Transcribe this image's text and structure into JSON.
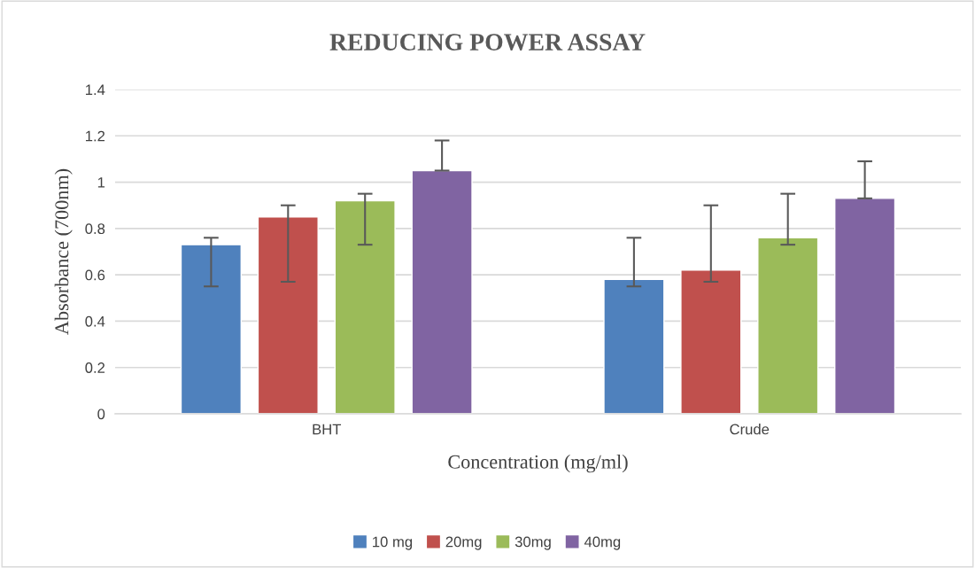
{
  "chart_data": {
    "type": "bar",
    "title": "REDUCING POWER ASSAY",
    "xlabel": "Concentration (mg/ml)",
    "ylabel": "Absorbance (700nm)",
    "categories": [
      "BHT",
      "Crude"
    ],
    "series": [
      {
        "name": "10 mg",
        "color": "#4f81bd",
        "values": [
          0.73,
          0.58
        ],
        "errors": [
          [
            0.55,
            0.76
          ],
          [
            0.55,
            0.76
          ]
        ]
      },
      {
        "name": "20mg",
        "color": "#c0504d",
        "values": [
          0.85,
          0.62
        ],
        "errors": [
          [
            0.57,
            0.9
          ],
          [
            0.57,
            0.9
          ]
        ]
      },
      {
        "name": "30mg",
        "color": "#9bbb59",
        "values": [
          0.92,
          0.76
        ],
        "errors": [
          [
            0.73,
            0.95
          ],
          [
            0.73,
            0.95
          ]
        ]
      },
      {
        "name": "40mg",
        "color": "#8064a2",
        "values": [
          1.05,
          0.93
        ],
        "errors": [
          [
            1.05,
            1.18
          ],
          [
            0.93,
            1.09
          ]
        ]
      }
    ],
    "ylim": [
      0,
      1.4
    ],
    "yticks": [
      0,
      0.2,
      0.4,
      0.6,
      0.8,
      1,
      1.2,
      1.4
    ],
    "grid": "y",
    "legend": "bottom"
  }
}
